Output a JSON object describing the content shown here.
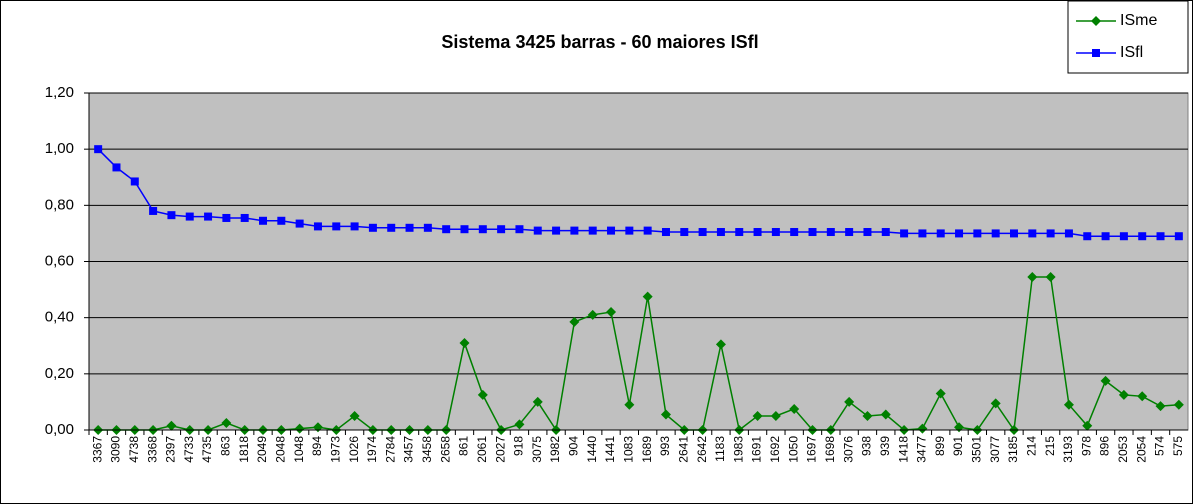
{
  "chart_data": {
    "type": "line",
    "title": "Sistema 3425 barras - 60 maiores ISfl",
    "categories": [
      "3367",
      "3090",
      "4738",
      "3368",
      "2397",
      "4733",
      "4735",
      "863",
      "1818",
      "2049",
      "2048",
      "1048",
      "894",
      "1973",
      "1026",
      "1974",
      "2784",
      "3457",
      "3458",
      "2658",
      "861",
      "2061",
      "2027",
      "918",
      "3075",
      "1982",
      "904",
      "1440",
      "1441",
      "1083",
      "1689",
      "993",
      "2641",
      "2642",
      "1183",
      "1983",
      "1691",
      "1692",
      "1050",
      "1697",
      "1698",
      "3076",
      "938",
      "939",
      "1418",
      "3477",
      "899",
      "901",
      "3501",
      "3077",
      "3185",
      "214",
      "215",
      "3193",
      "978",
      "896",
      "2053",
      "2054",
      "574",
      "575"
    ],
    "series": [
      {
        "name": "ISme",
        "color": "#008000",
        "marker": "diamond",
        "values": [
          0,
          0,
          0,
          0,
          0.015,
          0,
          0,
          0.025,
          0,
          0,
          0,
          0.005,
          0.01,
          0,
          0.05,
          0,
          0,
          0,
          0,
          0,
          0.31,
          0.125,
          0,
          0.02,
          0.1,
          0,
          0.385,
          0.41,
          0.42,
          0.09,
          0.475,
          0.055,
          0,
          0,
          0.305,
          0,
          0.05,
          0.05,
          0.075,
          0,
          0,
          0.1,
          0.05,
          0.055,
          0,
          0.005,
          0.13,
          0.01,
          0,
          0.095,
          0,
          0.545,
          0.545,
          0.09,
          0.015,
          0.175,
          0.125,
          0.12,
          0.085,
          0.09
        ]
      },
      {
        "name": "ISfl",
        "color": "#0000ff",
        "marker": "square",
        "values": [
          1.0,
          0.935,
          0.885,
          0.78,
          0.765,
          0.76,
          0.76,
          0.755,
          0.755,
          0.745,
          0.745,
          0.735,
          0.725,
          0.725,
          0.725,
          0.72,
          0.72,
          0.72,
          0.72,
          0.715,
          0.715,
          0.715,
          0.715,
          0.715,
          0.71,
          0.71,
          0.71,
          0.71,
          0.71,
          0.71,
          0.71,
          0.705,
          0.705,
          0.705,
          0.705,
          0.705,
          0.705,
          0.705,
          0.705,
          0.705,
          0.705,
          0.705,
          0.705,
          0.705,
          0.7,
          0.7,
          0.7,
          0.7,
          0.7,
          0.7,
          0.7,
          0.7,
          0.7,
          0.7,
          0.69,
          0.69,
          0.69,
          0.69,
          0.69,
          0.69
        ]
      }
    ],
    "ylim": [
      0,
      1.2
    ],
    "yticks": [
      {
        "value": 0,
        "label": "0,00"
      },
      {
        "value": 0.2,
        "label": "0,20"
      },
      {
        "value": 0.4,
        "label": "0,40"
      },
      {
        "value": 0.6,
        "label": "0,60"
      },
      {
        "value": 0.8,
        "label": "0,80"
      },
      {
        "value": 1.0,
        "label": "1,00"
      },
      {
        "value": 1.2,
        "label": "1,20"
      }
    ],
    "grid": true,
    "legend": "top-right",
    "plot_background": "#c0c0c0"
  }
}
